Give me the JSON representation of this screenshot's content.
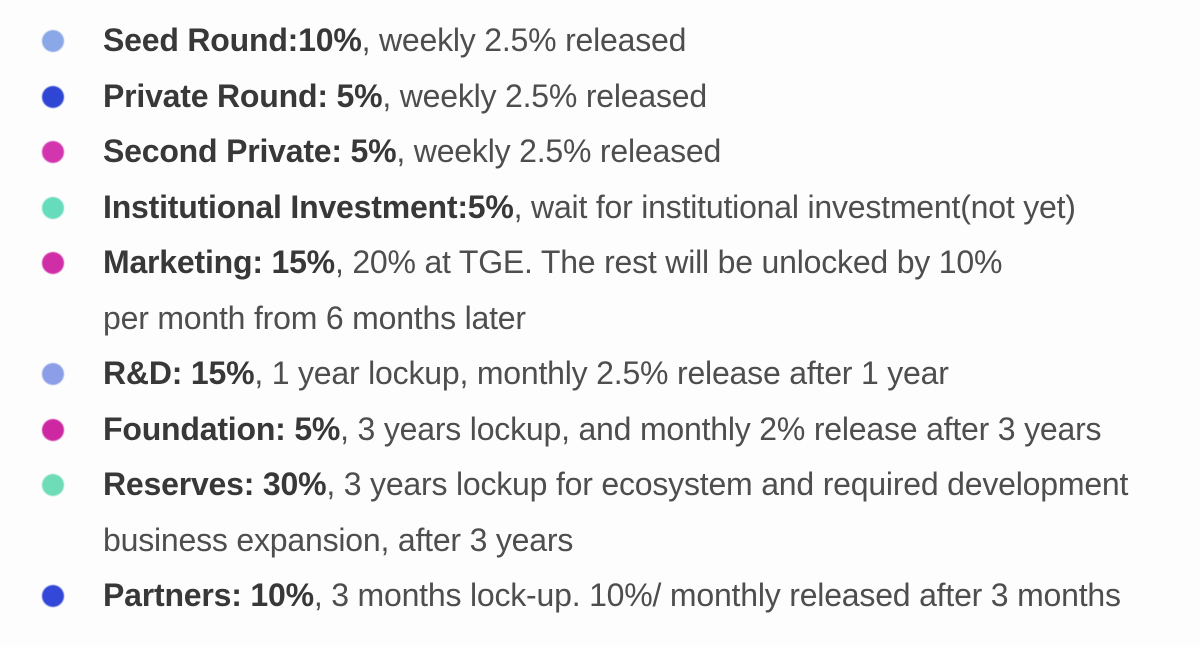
{
  "page": {
    "background": "#fdfdfd",
    "text_color_regular": "#4e4e4e",
    "text_color_bold": "#383838"
  },
  "list": {
    "items": [
      {
        "bullet_icon": "dot-icon",
        "color": "#8aa7e7",
        "bold": "Seed Round:10%",
        "rest": ", weekly 2.5% released",
        "line2": ""
      },
      {
        "bullet_icon": "dot-icon",
        "color": "#2e46d3",
        "bold": "Private Round: 5%",
        "rest": ", weekly 2.5% released",
        "line2": ""
      },
      {
        "bullet_icon": "dot-icon",
        "color": "#d335af",
        "bold": "Second Private: 5%",
        "rest": ", weekly 2.5% released",
        "line2": ""
      },
      {
        "bullet_icon": "dot-icon",
        "color": "#66dcbd",
        "bold": "Institutional Investment:5%",
        "rest": ", wait for institutional investment(not yet)",
        "line2": ""
      },
      {
        "bullet_icon": "dot-icon",
        "color": "#d02ea7",
        "bold": "Marketing: 15%",
        "rest": ", 20% at TGE. The rest will be unlocked by 10%",
        "line2": "per month from 6 months later"
      },
      {
        "bullet_icon": "dot-icon",
        "color": "#8c9ee8",
        "bold": "R&D: 15%",
        "rest": ", 1 year lockup, monthly 2.5% release after 1 year",
        "line2": ""
      },
      {
        "bullet_icon": "dot-icon",
        "color": "#cd28a2",
        "bold": "Foundation: 5%",
        "rest": ", 3 years lockup, and monthly 2% release after 3 years",
        "line2": ""
      },
      {
        "bullet_icon": "dot-icon",
        "color": "#6edcb6",
        "bold": "Reserves: 30%",
        "rest": ", 3 years lockup for ecosystem and required development",
        "line2": "business expansion, after 3 years"
      },
      {
        "bullet_icon": "dot-icon",
        "color": "#3347d8",
        "bold": "Partners: 10%",
        "rest": ", 3 months lock-up. 10%/ monthly released after 3 months",
        "line2": ""
      }
    ]
  }
}
